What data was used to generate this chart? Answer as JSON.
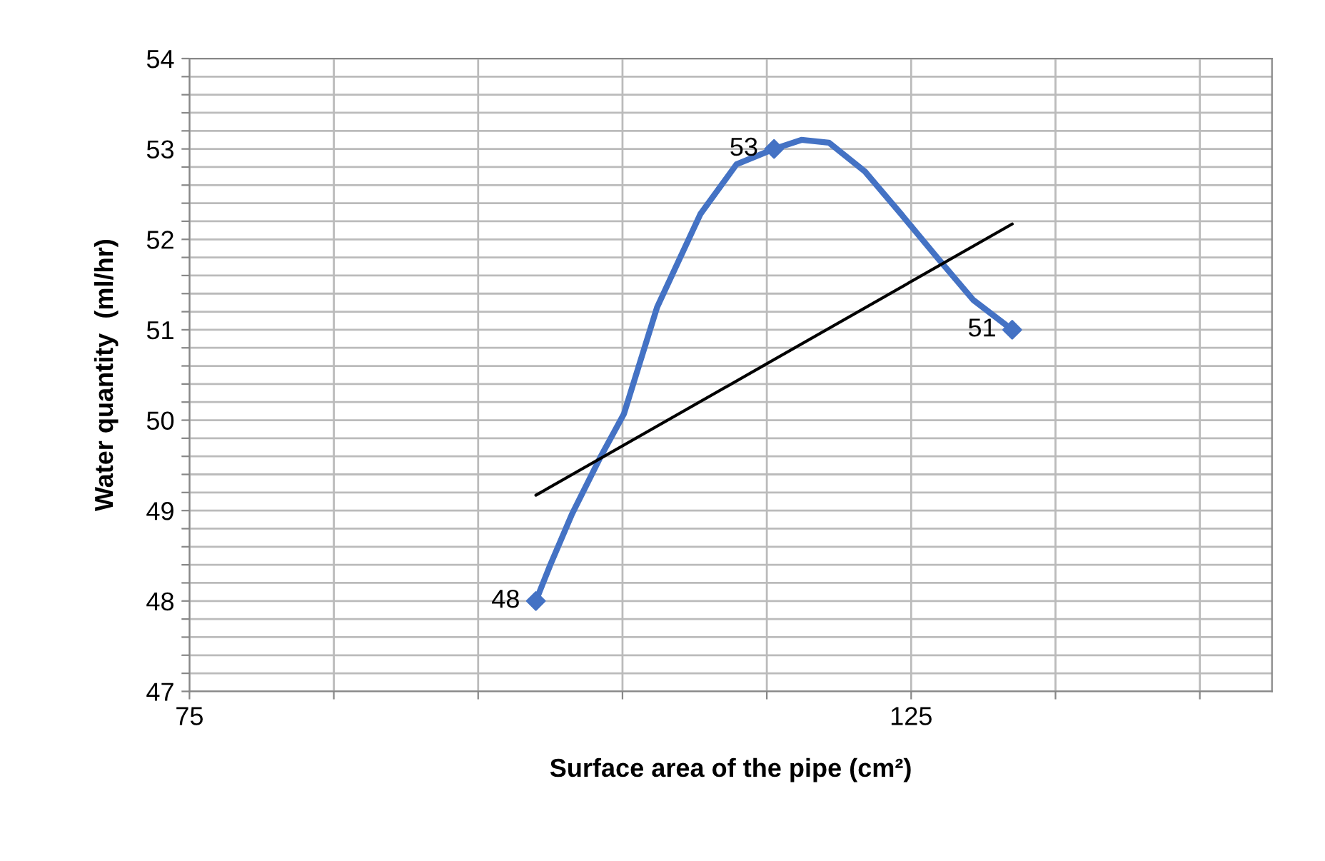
{
  "chart_data": {
    "type": "line",
    "xlabel": "Surface area of the pipe (cm²)",
    "ylabel": "Water quantity  (ml/hr)",
    "xlim": [
      75,
      150
    ],
    "ylim": [
      47,
      54
    ],
    "xticks": [
      75,
      {
        "value": 85,
        "label": null
      },
      {
        "value": 95,
        "label": null
      },
      {
        "value": 105,
        "label": null
      },
      {
        "value": 115,
        "label": null
      },
      125,
      {
        "value": 135,
        "label": null
      },
      {
        "value": 145,
        "label": null
      }
    ],
    "yticks": [
      47,
      {
        "value": 47.2,
        "label": null
      },
      {
        "value": 47.4,
        "label": null
      },
      {
        "value": 47.6,
        "label": null
      },
      {
        "value": 47.8,
        "label": null
      },
      48,
      {
        "value": 48.2,
        "label": null
      },
      {
        "value": 48.4,
        "label": null
      },
      {
        "value": 48.6,
        "label": null
      },
      {
        "value": 48.8,
        "label": null
      },
      49,
      {
        "value": 49.2,
        "label": null
      },
      {
        "value": 49.4,
        "label": null
      },
      {
        "value": 49.6,
        "label": null
      },
      {
        "value": 49.8,
        "label": null
      },
      50,
      {
        "value": 50.2,
        "label": null
      },
      {
        "value": 50.4,
        "label": null
      },
      {
        "value": 50.6,
        "label": null
      },
      {
        "value": 50.8,
        "label": null
      },
      51,
      {
        "value": 51.2,
        "label": null
      },
      {
        "value": 51.4,
        "label": null
      },
      {
        "value": 51.6,
        "label": null
      },
      {
        "value": 51.8,
        "label": null
      },
      52,
      {
        "value": 52.2,
        "label": null
      },
      {
        "value": 52.4,
        "label": null
      },
      {
        "value": 52.6,
        "label": null
      },
      {
        "value": 52.8,
        "label": null
      },
      53,
      {
        "value": 53.2,
        "label": null
      },
      {
        "value": 53.4,
        "label": null
      },
      {
        "value": 53.6,
        "label": null
      },
      {
        "value": 53.8,
        "label": null
      },
      54
    ],
    "grid": true,
    "series": [
      {
        "color": "#4472c4",
        "x": [
          99,
          100,
          101.5,
          103.5,
          105.1,
          107.4,
          110.4,
          112.9,
          115.5,
          117.4,
          119.3,
          121.8,
          124.3,
          126.8,
          129.3,
          132
        ],
        "values": [
          48,
          48.4,
          48.96,
          49.6,
          50.07,
          51.25,
          52.28,
          52.83,
          53,
          53.1,
          53.07,
          52.75,
          52.28,
          51.8,
          51.33,
          51
        ],
        "marker": "none"
      },
      {
        "type": "scatter",
        "color": "#4472c4",
        "x": [
          99,
          115.5,
          132
        ],
        "values": [
          48,
          53,
          51
        ],
        "marker": "diamond",
        "value_labels": [
          "48",
          "53",
          "51"
        ]
      },
      {
        "color": "#000000",
        "x": [
          99,
          132
        ],
        "values": [
          49.17,
          52.17
        ],
        "marker": "none"
      }
    ]
  }
}
